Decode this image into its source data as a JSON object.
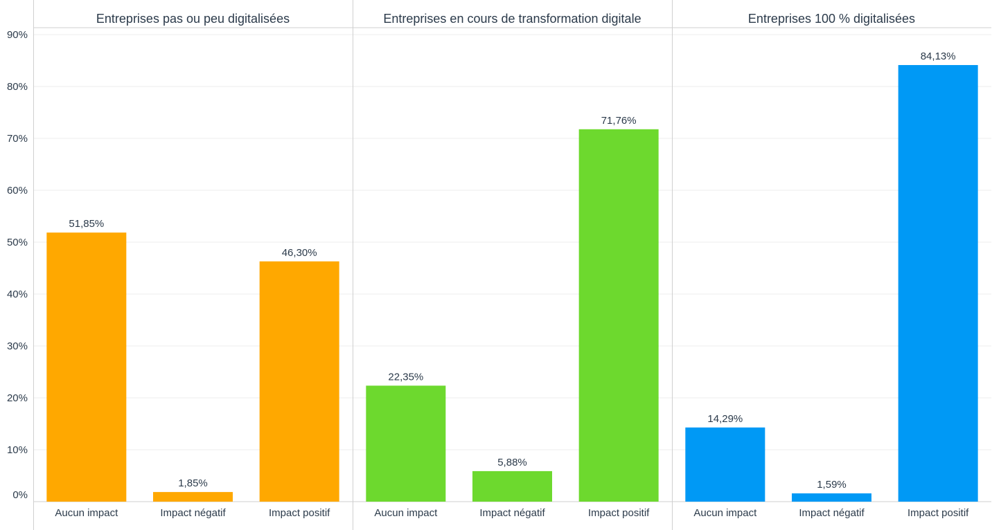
{
  "chart_data": {
    "type": "bar",
    "ylim": [
      0,
      90
    ],
    "yticks": [
      {
        "value": 0,
        "label": "0%"
      },
      {
        "value": 10,
        "label": "10%"
      },
      {
        "value": 20,
        "label": "20%"
      },
      {
        "value": 30,
        "label": "30%"
      },
      {
        "value": 40,
        "label": "40%"
      },
      {
        "value": 50,
        "label": "50%"
      },
      {
        "value": 60,
        "label": "60%"
      },
      {
        "value": 70,
        "label": "70%"
      },
      {
        "value": 80,
        "label": "80%"
      },
      {
        "value": 90,
        "label": "90%"
      }
    ],
    "grid": true,
    "categories": [
      "Aucun impact",
      "Impact négatif",
      "Impact positif"
    ],
    "panels": [
      {
        "title": "Entreprises pas ou peu digitalisées",
        "color": "#ffa800",
        "values": [
          51.85,
          1.85,
          46.3
        ],
        "labels": [
          "51,85%",
          "1,85%",
          "46,30%"
        ]
      },
      {
        "title": "Entreprises en cours de transformation digitale",
        "color": "#6dd92e",
        "values": [
          22.35,
          5.88,
          71.76
        ],
        "labels": [
          "22,35%",
          "5,88%",
          "71,76%"
        ]
      },
      {
        "title": "Entreprises 100 % digitalisées",
        "color": "#0099f5",
        "values": [
          14.29,
          1.59,
          84.13
        ],
        "labels": [
          "14,29%",
          "1,59%",
          "84,13%"
        ]
      }
    ]
  }
}
